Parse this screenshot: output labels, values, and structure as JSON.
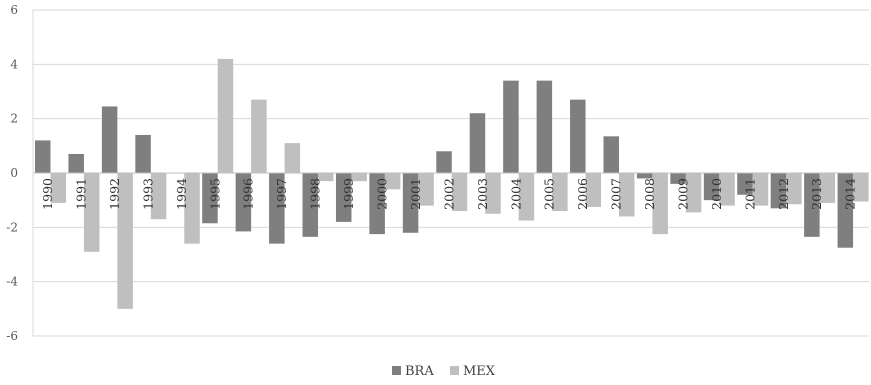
{
  "chart_data": {
    "type": "bar",
    "title": "",
    "xlabel": "",
    "ylabel": "",
    "ylim": [
      -6,
      6
    ],
    "yticks": [
      6,
      4,
      2,
      0,
      -2,
      -4,
      -6
    ],
    "grid": "horizontal",
    "legend_position": "bottom-center",
    "categories": [
      "1990",
      "1991",
      "1992",
      "1993",
      "1994",
      "1995",
      "1996",
      "1997",
      "1998",
      "1999",
      "2000",
      "2001",
      "2002",
      "2003",
      "2004",
      "2005",
      "2006",
      "2007",
      "2008",
      "2009",
      "2010",
      "2011",
      "2012",
      "2013",
      "2014"
    ],
    "series": [
      {
        "name": "BRA",
        "color": "#7f7f7f",
        "values": [
          1.2,
          0.7,
          2.45,
          1.4,
          0,
          -1.85,
          -2.15,
          -2.6,
          -2.35,
          -1.8,
          -2.25,
          -2.2,
          0.8,
          2.2,
          3.4,
          3.4,
          2.7,
          1.35,
          -0.2,
          -0.4,
          -1.0,
          -0.8,
          -1.3,
          -2.35,
          -2.75
        ]
      },
      {
        "name": "MEX",
        "color": "#bfbfbf",
        "values": [
          -1.1,
          -2.9,
          -5.0,
          -1.7,
          -2.6,
          4.2,
          2.7,
          1.1,
          -0.3,
          -0.3,
          -0.6,
          -1.2,
          -1.4,
          -1.5,
          -1.75,
          -1.4,
          -1.25,
          -1.6,
          -2.25,
          -1.45,
          -1.2,
          -1.2,
          -1.15,
          -1.1,
          -1.05
        ]
      }
    ]
  }
}
